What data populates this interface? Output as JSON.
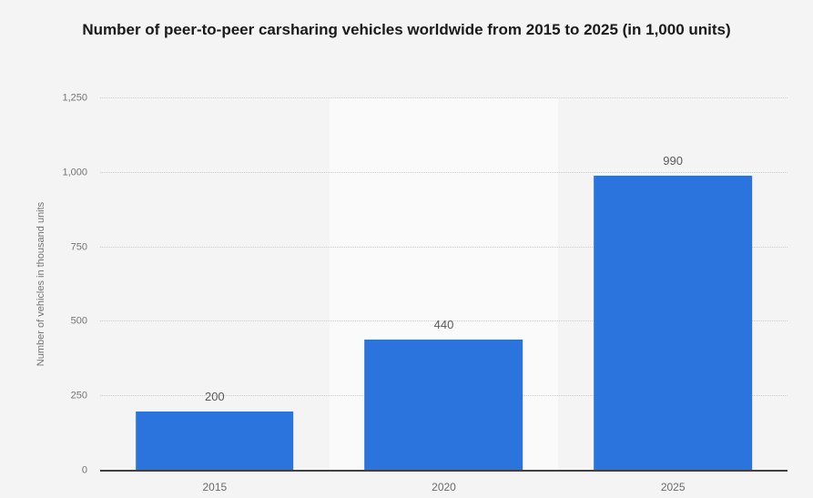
{
  "chart_data": {
    "type": "bar",
    "title": "Number of peer-to-peer carsharing vehicles worldwide from 2015 to 2025 (in 1,000 units)",
    "ylabel": "Number of vehicles in thousand units",
    "xlabel": "",
    "categories": [
      "2015",
      "2020",
      "2025"
    ],
    "values": [
      200,
      440,
      990
    ],
    "value_labels": [
      "200",
      "440",
      "990"
    ],
    "ylim": [
      0,
      1250
    ],
    "yticks": [
      0,
      250,
      500,
      750,
      1000,
      1250
    ],
    "ytick_labels": [
      "0",
      "250",
      "500",
      "750",
      "1,000",
      "1,250"
    ],
    "grid": true,
    "legend": false,
    "highlighted_category_index": 1,
    "colors": {
      "bar": "#2b74de",
      "page_background": "#f4f4f4",
      "highlight_band": "#fafafa",
      "gridline": "#cdcdcd",
      "axis_line": "#404040",
      "title_text": "#1a1a1a",
      "tick_text": "#757575",
      "value_label_text": "#595959"
    }
  }
}
